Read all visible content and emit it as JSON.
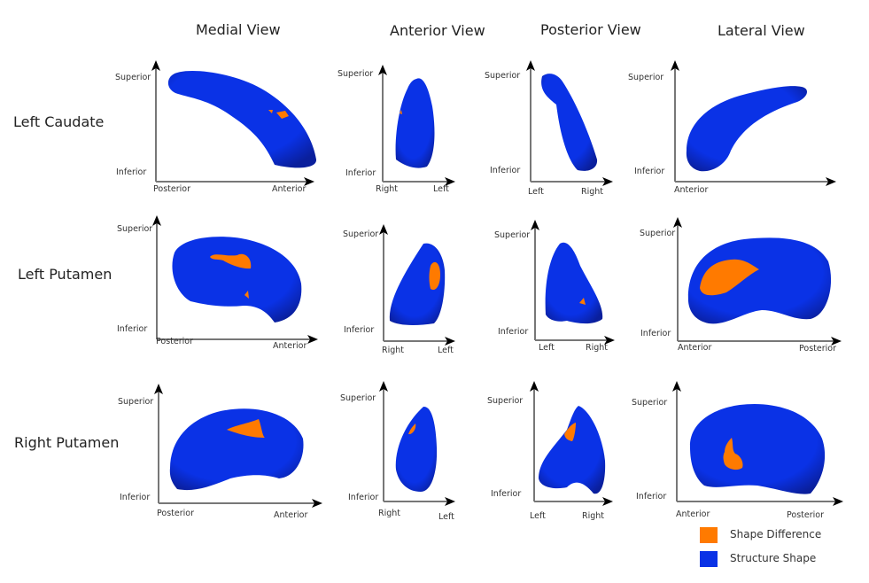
{
  "figure": {
    "columns": [
      "Medial View",
      "Anterior View",
      "Posterior View",
      "Lateral View"
    ],
    "rows": [
      "Left Caudate",
      "Left Putamen",
      "Right Putamen"
    ],
    "panels": [
      {
        "row": "Left Caudate",
        "view": "Medial View",
        "y_top": "Superior",
        "y_bottom": "Inferior",
        "x_left": "Posterior",
        "x_right": "Anterior",
        "difference_regions": 2
      },
      {
        "row": "Left Caudate",
        "view": "Anterior View",
        "y_top": "Superior",
        "y_bottom": "Inferior",
        "x_left": "Right",
        "x_right": "Left",
        "difference_regions": 1
      },
      {
        "row": "Left Caudate",
        "view": "Posterior View",
        "y_top": "Superior",
        "y_bottom": "Inferior",
        "x_left": "Left",
        "x_right": "Right",
        "difference_regions": 0
      },
      {
        "row": "Left Caudate",
        "view": "Lateral View",
        "y_top": "Superior",
        "y_bottom": "Inferior",
        "x_left": "Anterior",
        "x_right": "",
        "difference_regions": 0
      },
      {
        "row": "Left Putamen",
        "view": "Medial View",
        "y_top": "Superior",
        "y_bottom": "Inferior",
        "x_left": "Posterior",
        "x_right": "Anterior",
        "difference_regions": 2
      },
      {
        "row": "Left Putamen",
        "view": "Anterior View",
        "y_top": "Superior",
        "y_bottom": "Inferior",
        "x_left": "Right",
        "x_right": "Left",
        "difference_regions": 1
      },
      {
        "row": "Left Putamen",
        "view": "Posterior View",
        "y_top": "Superior",
        "y_bottom": "Inferior",
        "x_left": "Left",
        "x_right": "Right",
        "difference_regions": 1
      },
      {
        "row": "Left Putamen",
        "view": "Lateral View",
        "y_top": "Superior",
        "y_bottom": "Inferior",
        "x_left": "Anterior",
        "x_right": "Posterior",
        "difference_regions": 1
      },
      {
        "row": "Right Putamen",
        "view": "Medial View",
        "y_top": "Superior",
        "y_bottom": "Inferior",
        "x_left": "Posterior",
        "x_right": "Anterior",
        "difference_regions": 1
      },
      {
        "row": "Right Putamen",
        "view": "Anterior View",
        "y_top": "Superior",
        "y_bottom": "Inferior",
        "x_left": "Right",
        "x_right": "Left",
        "difference_regions": 1
      },
      {
        "row": "Right Putamen",
        "view": "Posterior View",
        "y_top": "Superior",
        "y_bottom": "Inferior",
        "x_left": "Left",
        "x_right": "Right",
        "difference_regions": 1
      },
      {
        "row": "Right Putamen",
        "view": "Lateral View",
        "y_top": "Superior",
        "y_bottom": "Inferior",
        "x_left": "Anterior",
        "x_right": "Posterior",
        "difference_regions": 1
      }
    ]
  },
  "legend": {
    "items": [
      {
        "label": "Shape Difference",
        "color": "#ff7a00"
      },
      {
        "label": "Structure Shape",
        "color": "#0a32e6"
      }
    ]
  },
  "colors": {
    "structure": "#0a32e6",
    "structure_dark": "#0a1f9c",
    "difference": "#ff7a00",
    "axis": "#777777",
    "arrow": "#000000"
  }
}
